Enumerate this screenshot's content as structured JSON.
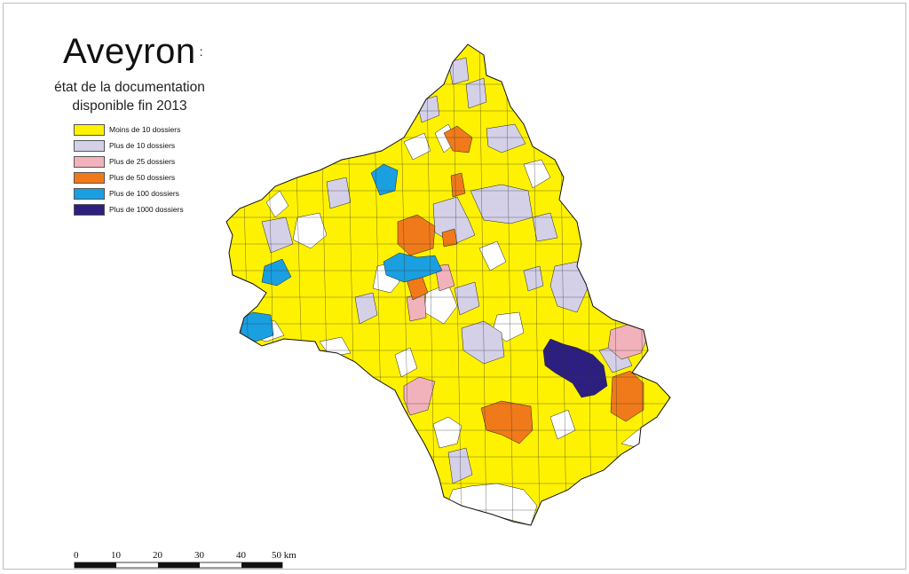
{
  "title": "Aveyron",
  "title_suffix": ":",
  "subtitle_line1": "état de la documentation",
  "subtitle_line2": "disponible fin 2013",
  "legend": [
    {
      "label": "Moins de 10 dossiers",
      "color": "#fff200"
    },
    {
      "label": "Plus de 10 dossiers",
      "color": "#d4d0e8"
    },
    {
      "label": "Plus de 25 dossiers",
      "color": "#f2b2bb"
    },
    {
      "label": "Plus de 50 dossiers",
      "color": "#f07a1a"
    },
    {
      "label": "Plus de 100 dossiers",
      "color": "#1a9fe0"
    },
    {
      "label": "Plus de 1000 dossiers",
      "color": "#2c1f7f"
    }
  ],
  "scale": {
    "ticks": [
      "0",
      "10",
      "20",
      "30",
      "40",
      "50 km"
    ]
  }
}
